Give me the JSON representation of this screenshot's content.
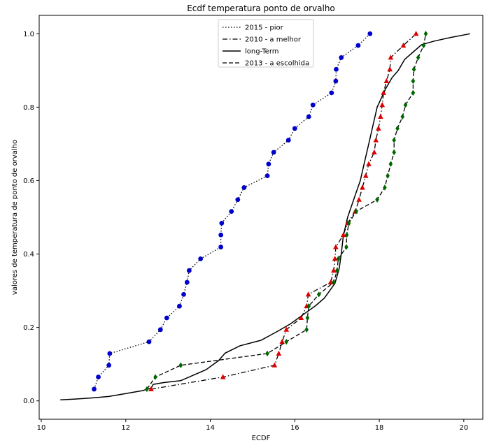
{
  "chart_data": {
    "type": "line",
    "title": "Ecdf temperatura ponto de orvalho",
    "xlabel": "ECDF",
    "ylabel": "valores de temperatura de ponto de orvalho",
    "xlim": [
      9.95,
      20.45
    ],
    "ylim": [
      -0.05,
      1.05
    ],
    "xticks": [
      10,
      12,
      14,
      16,
      18,
      20
    ],
    "yticks": [
      0.0,
      0.2,
      0.4,
      0.6,
      0.8,
      1.0
    ],
    "grid": false,
    "legend_position": "top-center",
    "series": [
      {
        "name": "2015 - pior",
        "linestyle": "dotted",
        "marker": "circle",
        "color": "#0000cc",
        "points": [
          [
            11.25,
            0.032
          ],
          [
            11.35,
            0.065
          ],
          [
            11.6,
            0.097
          ],
          [
            11.62,
            0.129
          ],
          [
            12.55,
            0.161
          ],
          [
            12.82,
            0.194
          ],
          [
            12.97,
            0.226
          ],
          [
            13.27,
            0.258
          ],
          [
            13.37,
            0.29
          ],
          [
            13.45,
            0.323
          ],
          [
            13.5,
            0.355
          ],
          [
            13.77,
            0.387
          ],
          [
            14.25,
            0.419
          ],
          [
            14.25,
            0.452
          ],
          [
            14.27,
            0.484
          ],
          [
            14.5,
            0.516
          ],
          [
            14.65,
            0.548
          ],
          [
            14.8,
            0.581
          ],
          [
            15.35,
            0.613
          ],
          [
            15.38,
            0.645
          ],
          [
            15.5,
            0.677
          ],
          [
            15.85,
            0.71
          ],
          [
            16.0,
            0.742
          ],
          [
            16.33,
            0.774
          ],
          [
            16.43,
            0.806
          ],
          [
            16.87,
            0.839
          ],
          [
            16.97,
            0.871
          ],
          [
            16.98,
            0.903
          ],
          [
            17.1,
            0.935
          ],
          [
            17.5,
            0.968
          ],
          [
            17.78,
            1.0
          ]
        ]
      },
      {
        "name": "2010 - a melhor",
        "linestyle": "dashdot",
        "marker": "triangle",
        "color": "#dd0000",
        "points": [
          [
            12.6,
            0.032
          ],
          [
            14.3,
            0.065
          ],
          [
            15.52,
            0.097
          ],
          [
            15.62,
            0.129
          ],
          [
            15.7,
            0.161
          ],
          [
            15.8,
            0.194
          ],
          [
            16.15,
            0.226
          ],
          [
            16.28,
            0.258
          ],
          [
            16.32,
            0.29
          ],
          [
            16.85,
            0.323
          ],
          [
            16.92,
            0.355
          ],
          [
            16.95,
            0.387
          ],
          [
            16.97,
            0.419
          ],
          [
            17.15,
            0.452
          ],
          [
            17.25,
            0.484
          ],
          [
            17.43,
            0.516
          ],
          [
            17.52,
            0.548
          ],
          [
            17.6,
            0.581
          ],
          [
            17.68,
            0.613
          ],
          [
            17.75,
            0.645
          ],
          [
            17.88,
            0.677
          ],
          [
            17.92,
            0.71
          ],
          [
            17.98,
            0.742
          ],
          [
            18.03,
            0.774
          ],
          [
            18.07,
            0.806
          ],
          [
            18.1,
            0.839
          ],
          [
            18.17,
            0.871
          ],
          [
            18.25,
            0.903
          ],
          [
            18.27,
            0.935
          ],
          [
            18.57,
            0.968
          ],
          [
            18.87,
            1.0
          ]
        ]
      },
      {
        "name": "long-Term",
        "linestyle": "solid",
        "marker": "none",
        "color": "#000000",
        "points": [
          [
            10.45,
            0.003
          ],
          [
            10.8,
            0.005
          ],
          [
            11.2,
            0.008
          ],
          [
            11.6,
            0.012
          ],
          [
            12.0,
            0.02
          ],
          [
            12.4,
            0.028
          ],
          [
            12.6,
            0.035
          ],
          [
            12.65,
            0.045
          ],
          [
            12.9,
            0.05
          ],
          [
            13.3,
            0.055
          ],
          [
            13.6,
            0.07
          ],
          [
            13.9,
            0.085
          ],
          [
            14.2,
            0.11
          ],
          [
            14.35,
            0.13
          ],
          [
            14.7,
            0.15
          ],
          [
            15.2,
            0.165
          ],
          [
            15.6,
            0.19
          ],
          [
            15.9,
            0.21
          ],
          [
            16.2,
            0.235
          ],
          [
            16.5,
            0.26
          ],
          [
            16.7,
            0.28
          ],
          [
            16.95,
            0.32
          ],
          [
            17.05,
            0.36
          ],
          [
            17.1,
            0.4
          ],
          [
            17.15,
            0.45
          ],
          [
            17.25,
            0.5
          ],
          [
            17.4,
            0.55
          ],
          [
            17.55,
            0.6
          ],
          [
            17.65,
            0.65
          ],
          [
            17.75,
            0.7
          ],
          [
            17.85,
            0.75
          ],
          [
            17.95,
            0.8
          ],
          [
            18.15,
            0.85
          ],
          [
            18.3,
            0.88
          ],
          [
            18.45,
            0.9
          ],
          [
            18.6,
            0.93
          ],
          [
            18.8,
            0.95
          ],
          [
            19.0,
            0.97
          ],
          [
            19.3,
            0.98
          ],
          [
            19.7,
            0.99
          ],
          [
            20.15,
            1.0
          ]
        ]
      },
      {
        "name": "2013 - a escolhida",
        "linestyle": "dashed",
        "marker": "diamond",
        "color": "#006600",
        "points": [
          [
            12.5,
            0.032
          ],
          [
            12.7,
            0.065
          ],
          [
            13.3,
            0.097
          ],
          [
            15.35,
            0.129
          ],
          [
            15.8,
            0.161
          ],
          [
            16.28,
            0.194
          ],
          [
            16.3,
            0.226
          ],
          [
            16.33,
            0.258
          ],
          [
            16.57,
            0.29
          ],
          [
            16.92,
            0.323
          ],
          [
            17.0,
            0.355
          ],
          [
            17.03,
            0.387
          ],
          [
            17.22,
            0.419
          ],
          [
            17.23,
            0.452
          ],
          [
            17.28,
            0.484
          ],
          [
            17.45,
            0.516
          ],
          [
            17.95,
            0.548
          ],
          [
            18.13,
            0.581
          ],
          [
            18.2,
            0.613
          ],
          [
            18.27,
            0.645
          ],
          [
            18.35,
            0.677
          ],
          [
            18.35,
            0.71
          ],
          [
            18.43,
            0.742
          ],
          [
            18.55,
            0.774
          ],
          [
            18.62,
            0.806
          ],
          [
            18.8,
            0.839
          ],
          [
            18.8,
            0.871
          ],
          [
            18.82,
            0.903
          ],
          [
            18.92,
            0.935
          ],
          [
            19.05,
            0.968
          ],
          [
            19.1,
            1.0
          ]
        ]
      }
    ]
  }
}
